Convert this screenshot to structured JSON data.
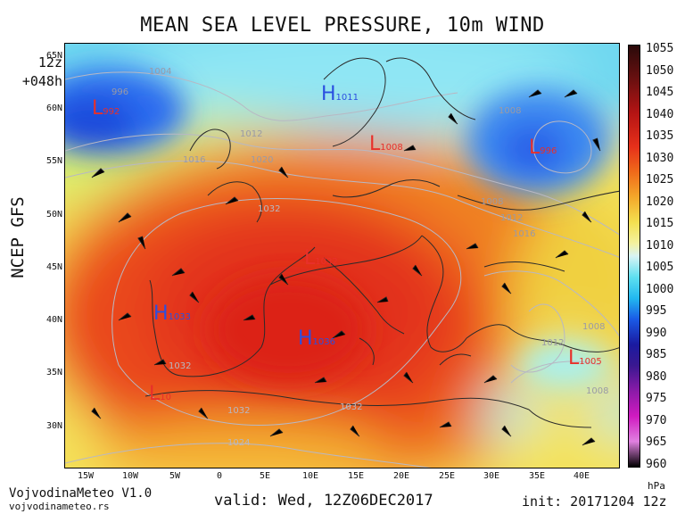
{
  "title": "MEAN SEA LEVEL PRESSURE, 10m WIND",
  "run_hour": "12z",
  "forecast_step": "+048h",
  "model": "NCEP GFS",
  "lat_labels": [
    "65N",
    "60N",
    "55N",
    "50N",
    "45N",
    "40N",
    "35N",
    "30N"
  ],
  "lon_labels": [
    "15W",
    "10W",
    "5W",
    "0",
    "5E",
    "10E",
    "15E",
    "20E",
    "25E",
    "30E",
    "35E",
    "40E"
  ],
  "colorbar": {
    "ticks": [
      "1055",
      "1050",
      "1045",
      "1040",
      "1035",
      "1030",
      "1025",
      "1020",
      "1015",
      "1010",
      "1005",
      "1000",
      "995",
      "990",
      "985",
      "980",
      "975",
      "970",
      "965",
      "960"
    ],
    "unit": "hPa"
  },
  "pressure_centers": [
    {
      "type": "L",
      "value": "992",
      "color": "#e8302a"
    },
    {
      "type": "H",
      "value": "1011",
      "color": "#2a4fe0"
    },
    {
      "type": "L",
      "value": "1008",
      "color": "#e8302a"
    },
    {
      "type": "L",
      "value": "996",
      "color": "#e8302a"
    },
    {
      "type": "L",
      "value": "1032",
      "color": "#e8302a"
    },
    {
      "type": "H",
      "value": "1033",
      "color": "#2a4fe0"
    },
    {
      "type": "H",
      "value": "1036",
      "color": "#2a4fe0"
    },
    {
      "type": "L",
      "value": "10",
      "color": "#e8302a"
    },
    {
      "type": "L",
      "value": "1005",
      "color": "#e8302a"
    }
  ],
  "isobar_labels": [
    "1004",
    "996",
    "1012",
    "1016",
    "1020",
    "1032",
    "1032",
    "1032",
    "1032",
    "1024",
    "1008",
    "1012",
    "1016",
    "1008",
    "1012",
    "1008",
    "1008"
  ],
  "footer": {
    "brand": "VojvodinaMeteo V1.0",
    "site": "vojvodinameteo.rs",
    "valid": "valid: Wed, 12Z06DEC2017",
    "init": "init: 20171204 12z"
  }
}
